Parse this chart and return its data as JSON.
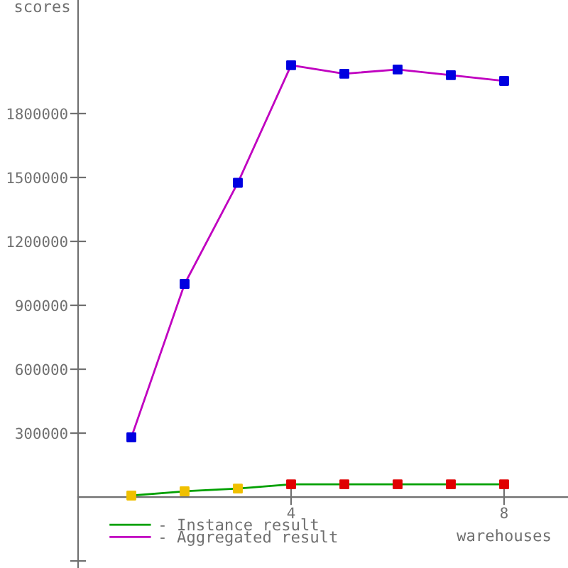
{
  "chart_data": {
    "type": "line",
    "xlabel": "warehouses",
    "ylabel": "scores",
    "x": [
      1,
      2,
      3,
      4,
      5,
      6,
      7,
      8
    ],
    "series": [
      {
        "name": "- Instance result",
        "color": "#00a000",
        "colors": [
          "#f0c000",
          "#f0c000",
          "#f0c000",
          "#e00000",
          "#e00000",
          "#e00000",
          "#e00000",
          "#e00000"
        ],
        "values": [
          7000,
          27000,
          40000,
          60000,
          60000,
          60000,
          60000,
          60000
        ]
      },
      {
        "name": "- Aggregated result",
        "color": "#c000c0",
        "colors": [
          "#0000e0",
          "#0000e0",
          "#0000e0",
          "#0000e0",
          "#0000e0",
          "#0000e0",
          "#0000e0",
          "#0000e0"
        ],
        "values": [
          280000,
          1000000,
          1475000,
          2027000,
          1987000,
          2007000,
          1980000,
          1953000
        ]
      }
    ],
    "xlim": [
      0,
      9.2
    ],
    "ylim": [
      -333000,
      2333000
    ],
    "xticks": [
      4,
      8
    ],
    "yticks": [
      {
        "value": -300000,
        "label": null
      },
      300000,
      600000,
      900000,
      1200000,
      1500000,
      1800000
    ],
    "marker": "square",
    "grid": false,
    "legend": "bottom left"
  }
}
